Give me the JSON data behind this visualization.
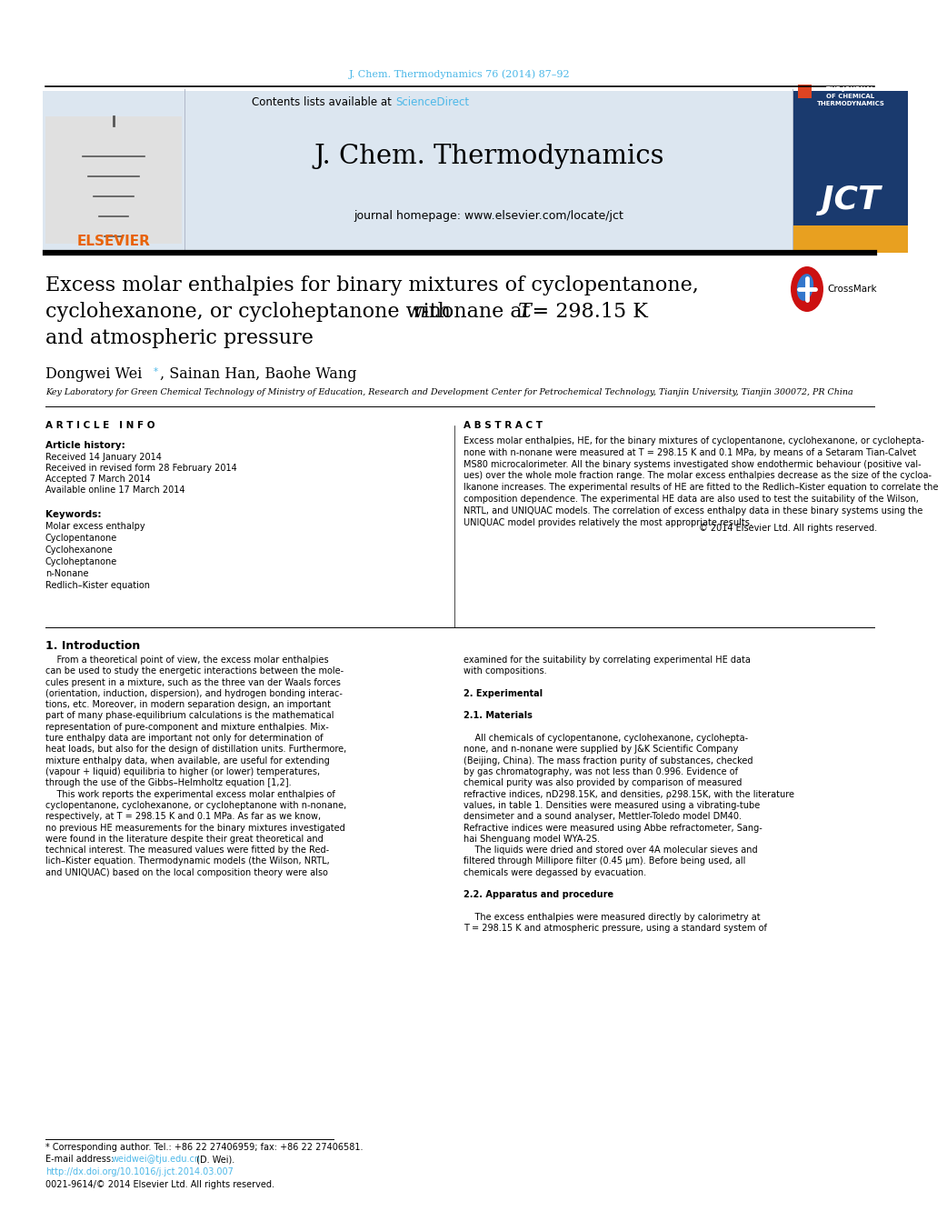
{
  "page_bg": "#ffffff",
  "top_citation": "J. Chem. Thermodynamics 76 (2014) 87–92",
  "top_citation_color": "#4db8e8",
  "header_bg": "#dce6f0",
  "sciencedirect_color": "#4db8e8",
  "journal_title": "J. Chem. Thermodynamics",
  "journal_homepage": "journal homepage: www.elsevier.com/locate/jct",
  "elsevier_color": "#e8630a",
  "article_title_line1": "Excess molar enthalpies for binary mixtures of cyclopentanone,",
  "article_title_line3": "and atmospheric pressure",
  "authors_main": "Dongwei Wei",
  "authors_rest": ", Sainan Han, Baohe Wang",
  "affiliation": "Key Laboratory for Green Chemical Technology of Ministry of Education, Research and Development Center for Petrochemical Technology, Tianjin University, Tianjin 300072, PR China",
  "article_info_title": "A R T I C L E   I N F O",
  "abstract_title": "A B S T R A C T",
  "article_history_label": "Article history:",
  "received": "Received 14 January 2014",
  "received_revised": "Received in revised form 28 February 2014",
  "accepted": "Accepted 7 March 2014",
  "available": "Available online 17 March 2014",
  "keywords_label": "Keywords:",
  "keywords": [
    "Molar excess enthalpy",
    "Cyclopentanone",
    "Cyclohexanone",
    "Cycloheptanone",
    "n-Nonane",
    "Redlich–Kister equation"
  ],
  "copyright": "© 2014 Elsevier Ltd. All rights reserved.",
  "intro_title": "1. Introduction",
  "footnote_star_line": "* Corresponding author. Tel.: +86 22 27406959; fax: +86 22 27406581.",
  "footnote_email_label": "E-mail address: ",
  "footnote_email_link": "weidwei@tju.edu.cn",
  "footnote_email_suffix": " (D. Wei).",
  "footnote_doi": "http://dx.doi.org/10.1016/j.jct.2014.03.007",
  "footnote_issn": "0021-9614/© 2014 Elsevier Ltd. All rights reserved.",
  "abstract_lines": [
    "Excess molar enthalpies, HE, for the binary mixtures of cyclopentanone, cyclohexanone, or cyclohepta-",
    "none with n-nonane were measured at T = 298.15 K and 0.1 MPa, by means of a Setaram Tian-Calvet",
    "MS80 microcalorimeter. All the binary systems investigated show endothermic behaviour (positive val-",
    "ues) over the whole mole fraction range. The molar excess enthalpies decrease as the size of the cycloa-",
    "lkanone increases. The experimental results of HE are fitted to the Redlich–Kister equation to correlate the",
    "composition dependence. The experimental HE data are also used to test the suitability of the Wilson,",
    "NRTL, and UNIQUAC models. The correlation of excess enthalpy data in these binary systems using the",
    "UNIQUAC model provides relatively the most appropriate results."
  ],
  "intro1_lines": [
    "    From a theoretical point of view, the excess molar enthalpies",
    "can be used to study the energetic interactions between the mole-",
    "cules present in a mixture, such as the three van der Waals forces",
    "(orientation, induction, dispersion), and hydrogen bonding interac-",
    "tions, etc. Moreover, in modern separation design, an important",
    "part of many phase-equilibrium calculations is the mathematical",
    "representation of pure-component and mixture enthalpies. Mix-",
    "ture enthalpy data are important not only for determination of",
    "heat loads, but also for the design of distillation units. Furthermore,",
    "mixture enthalpy data, when available, are useful for extending",
    "(vapour + liquid) equilibria to higher (or lower) temperatures,",
    "through the use of the Gibbs–Helmholtz equation [1,2].",
    "    This work reports the experimental excess molar enthalpies of",
    "cyclopentanone, cyclohexanone, or cycloheptanone with n-nonane,",
    "respectively, at T = 298.15 K and 0.1 MPa. As far as we know,",
    "no previous HE measurements for the binary mixtures investigated",
    "were found in the literature despite their great theoretical and",
    "technical interest. The measured values were fitted by the Red-",
    "lich–Kister equation. Thermodynamic models (the Wilson, NRTL,",
    "and UNIQUAC) based on the local composition theory were also"
  ],
  "intro2_lines": [
    "examined for the suitability by correlating experimental HE data",
    "with compositions.",
    "",
    "2. Experimental",
    "",
    "2.1. Materials",
    "",
    "    All chemicals of cyclopentanone, cyclohexanone, cyclohepta-",
    "none, and n-nonane were supplied by J&K Scientific Company",
    "(Beijing, China). The mass fraction purity of substances, checked",
    "by gas chromatography, was not less than 0.996. Evidence of",
    "chemical purity was also provided by comparison of measured",
    "refractive indices, nD298.15K, and densities, ρ298.15K, with the literature",
    "values, in table 1. Densities were measured using a vibrating-tube",
    "densimeter and a sound analyser, Mettler-Toledo model DM40.",
    "Refractive indices were measured using Abbe refractometer, Sang-",
    "hai Shenguang model WYA-2S.",
    "    The liquids were dried and stored over 4A molecular sieves and",
    "filtered through Millipore filter (0.45 μm). Before being used, all",
    "chemicals were degassed by evacuation.",
    "",
    "2.2. Apparatus and procedure",
    "",
    "    The excess enthalpies were measured directly by calorimetry at",
    "T = 298.15 K and atmospheric pressure, using a standard system of"
  ],
  "bold_intro2": [
    "2. Experimental",
    "2.1. Materials",
    "2.2. Apparatus and procedure"
  ]
}
